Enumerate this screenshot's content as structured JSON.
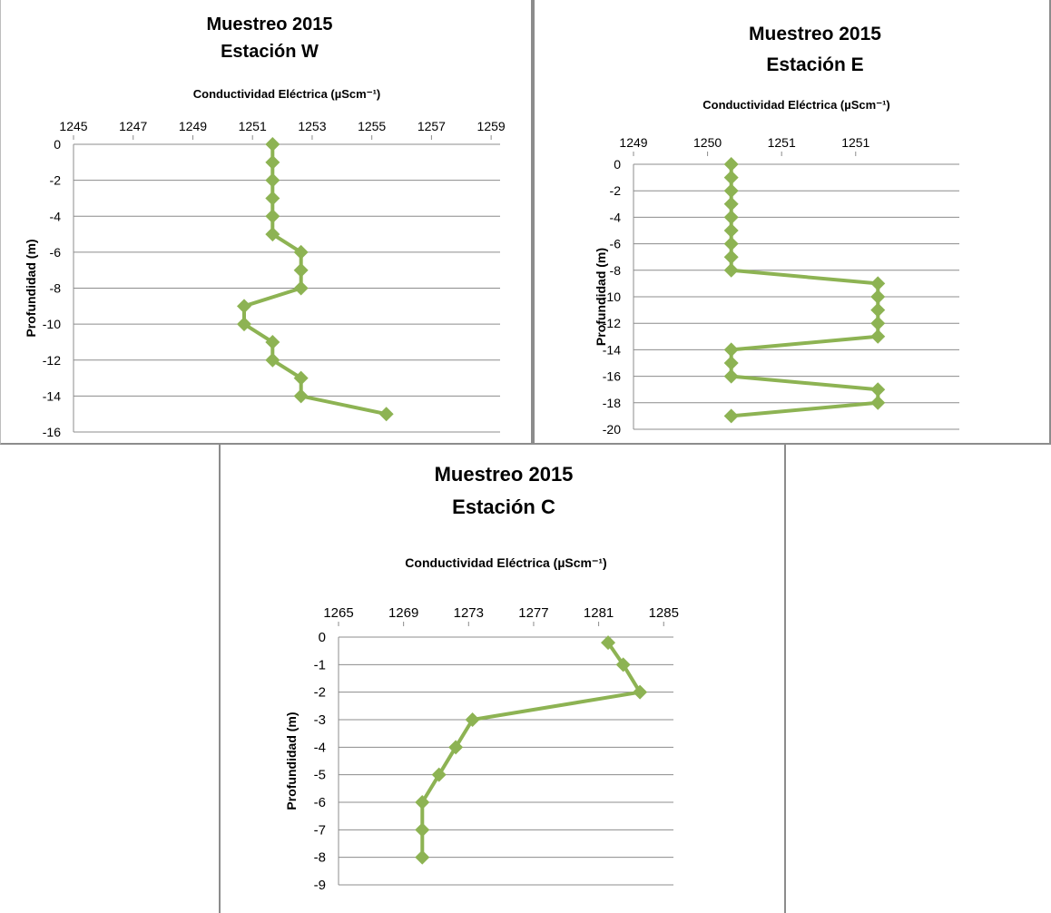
{
  "colors": {
    "series": "#8db353",
    "grid": "#8c8c8c"
  },
  "chart_data": [
    {
      "type": "line",
      "title": [
        "Muestreo 2015",
        "Estación W"
      ],
      "xlabel": "Conductividad Eléctrica (µScm⁻¹)",
      "ylabel": "Profundidad (m)",
      "xticks": [
        "1245",
        "1247",
        "1249",
        "1251",
        "1253",
        "1255",
        "1257",
        "1259"
      ],
      "xlim": [
        1245,
        1260
      ],
      "yticks": [
        "0",
        "-2",
        "-4",
        "-6",
        "-8",
        "-10",
        "-12",
        "-14",
        "-16"
      ],
      "ylim": [
        -16,
        0
      ],
      "grid": true,
      "legend": "none",
      "series": [
        {
          "x": [
            1252,
            1252,
            1252,
            1252,
            1252,
            1252,
            1253,
            1253,
            1253,
            1251,
            1251,
            1252,
            1252,
            1253,
            1253,
            1256
          ],
          "y": [
            0,
            -1,
            -2,
            -3,
            -4,
            -5,
            -6,
            -7,
            -8,
            -9,
            -10,
            -11,
            -12,
            -13,
            -14,
            -15
          ]
        }
      ]
    },
    {
      "type": "line",
      "title": [
        "Muestreo 2015",
        "Estación E"
      ],
      "xlabel": "Conductividad Eléctrica (µScm⁻¹)",
      "ylabel": "Profundidad (m)",
      "xticks": [
        "1249",
        "1250",
        "1251",
        "1251"
      ],
      "xlim": [
        1249.5,
        1251.5
      ],
      "yticks": [
        "0",
        "-2",
        "-4",
        "-6",
        "-8",
        "-10",
        "-12",
        "-14",
        "-16",
        "-18",
        "-20"
      ],
      "ylim": [
        -20,
        0
      ],
      "grid": true,
      "legend": "none",
      "series": [
        {
          "x": [
            1250.1,
            1250.1,
            1250.1,
            1250.1,
            1250.1,
            1250.1,
            1250.1,
            1250.1,
            1250.1,
            1251.0,
            1251.0,
            1251.0,
            1251.0,
            1251.0,
            1250.1,
            1250.1,
            1250.1,
            1251.0,
            1251.0,
            1250.1
          ],
          "y": [
            0,
            -1,
            -2,
            -3,
            -4,
            -5,
            -6,
            -7,
            -8,
            -9,
            -10,
            -11,
            -12,
            -13,
            -14,
            -15,
            -16,
            -17,
            -18,
            -19
          ]
        }
      ]
    },
    {
      "type": "line",
      "title": [
        "Muestreo 2015",
        "Estación C"
      ],
      "xlabel": "Conductividad Eléctrica (µScm⁻¹)",
      "ylabel": "Profundidad (m)",
      "xticks": [
        "1265",
        "1269",
        "1273",
        "1277",
        "1281",
        "1285"
      ],
      "xlim": [
        1265,
        1285
      ],
      "yticks": [
        "0",
        "-1",
        "-2",
        "-3",
        "-4",
        "-5",
        "-6",
        "-7",
        "-8",
        "-9"
      ],
      "ylim": [
        -9,
        0
      ],
      "grid": true,
      "legend": "none",
      "series": [
        {
          "x": [
            1281.1,
            1282,
            1283,
            1273,
            1272,
            1271,
            1270,
            1270,
            1270
          ],
          "y": [
            -0.2,
            -1,
            -2,
            -3,
            -4,
            -5,
            -6,
            -7,
            -8
          ]
        }
      ]
    }
  ]
}
